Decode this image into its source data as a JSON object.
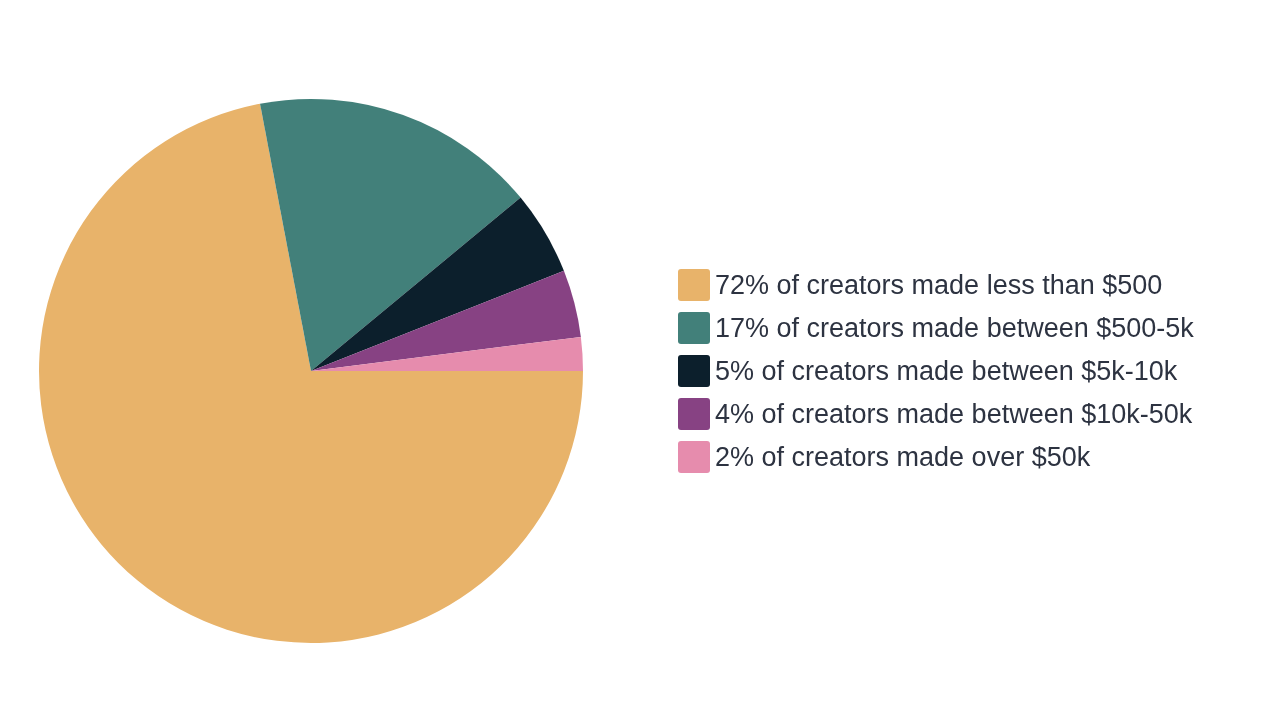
{
  "chart_data": {
    "type": "pie",
    "categories": [
      "72% of creators made less than $500",
      "17% of creators made between $500-5k",
      "5% of creators made between $5k-10k",
      "4% of creators made between $10k-50k",
      "2% of creators made over $50k"
    ],
    "values": [
      72,
      17,
      5,
      4,
      2
    ],
    "colors": [
      "#e8b36a",
      "#42807a",
      "#0c1f2c",
      "#874283",
      "#e68cad"
    ],
    "legend": "right"
  }
}
